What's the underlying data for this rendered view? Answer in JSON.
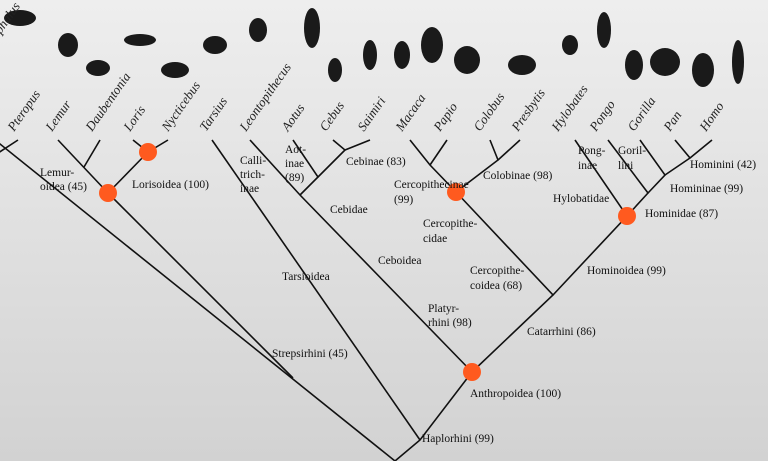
{
  "tips": [
    "cephalus",
    "Pteropus",
    "Lemur",
    "Daubentonia",
    "Loris",
    "Nycticebus",
    "Tarsius",
    "Leontopithecus",
    "Aotus",
    "Cebus",
    "Saimiri",
    "Macaca",
    "Papio",
    "Colobus",
    "Presbytis",
    "Hylobates",
    "Pongo",
    "Gorilla",
    "Pan",
    "Homo"
  ],
  "clades": [
    {
      "lines": [
        "Lemur-",
        "oidea (45)"
      ]
    },
    {
      "lines": [
        "Lorisoidea (100)"
      ]
    },
    {
      "lines": [
        "Calli-",
        "trich-",
        "inae"
      ]
    },
    {
      "lines": [
        "Aot-",
        "inae",
        "(89)"
      ]
    },
    {
      "lines": [
        "Cebinae (83)"
      ]
    },
    {
      "lines": [
        "Cebidae"
      ]
    },
    {
      "lines": [
        "Tarsioidea"
      ]
    },
    {
      "lines": [
        "Ceboidea"
      ]
    },
    {
      "lines": [
        "Platyr-",
        "rhini (98)"
      ]
    },
    {
      "lines": [
        "Strepsirhini (45)"
      ]
    },
    {
      "lines": [
        "Anthropoidea (100)"
      ]
    },
    {
      "lines": [
        "Haplorhini (99)"
      ]
    },
    {
      "lines": [
        "Catarrhini (86)"
      ]
    },
    {
      "lines": [
        "Cercopithe-",
        "coidea (68)"
      ]
    },
    {
      "lines": [
        "Cercopithe-",
        "cidae"
      ]
    },
    {
      "lines": [
        "Cercopithecinae",
        "(99)"
      ]
    },
    {
      "lines": [
        "Colobinae (98)"
      ]
    },
    {
      "lines": [
        "Hominoidea (99)"
      ]
    },
    {
      "lines": [
        "Hylobatidae"
      ]
    },
    {
      "lines": [
        "Hominidae (87)"
      ]
    },
    {
      "lines": [
        "Pong-",
        "inae"
      ]
    },
    {
      "lines": [
        "Goril-",
        "lini"
      ]
    },
    {
      "lines": [
        "Hominini (42)"
      ]
    },
    {
      "lines": [
        "Homininae (99)"
      ]
    }
  ]
}
